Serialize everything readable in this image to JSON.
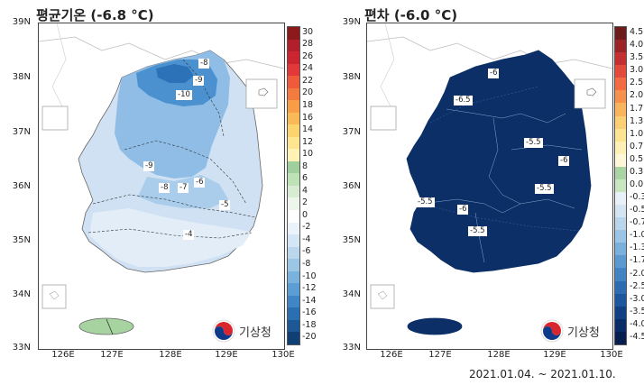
{
  "left": {
    "title": "평균기온 (-6.8 °C)",
    "lat_labels": [
      "39N",
      "38N",
      "37N",
      "36N",
      "35N",
      "34N",
      "33N"
    ],
    "lon_labels": [
      "126E",
      "127E",
      "128E",
      "129E",
      "130E"
    ],
    "colorbar_labels": [
      "30",
      "28",
      "26",
      "24",
      "22",
      "20",
      "18",
      "16",
      "14",
      "12",
      "10",
      "8",
      "6",
      "4",
      "2",
      "0",
      "-2",
      "-4",
      "-6",
      "-8",
      "-10",
      "-12",
      "-14",
      "-16",
      "-18",
      "-20"
    ],
    "colorbar_colors": [
      "#8c1a1a",
      "#b01f2a",
      "#cc2530",
      "#e2383a",
      "#ef5a3a",
      "#f47b3f",
      "#f79c47",
      "#f9b957",
      "#fbd36f",
      "#fde68f",
      "#fef2b4",
      "#9fcf9c",
      "#bde2b6",
      "#d8ecd3",
      "#eef5ea",
      "#ffffff",
      "#eaf2fa",
      "#d4e6f5",
      "#bad7ee",
      "#9cc6e6",
      "#7ab2de",
      "#5b9dd5",
      "#3f86c7",
      "#2b6fb3",
      "#1c5796",
      "#0f3f74"
    ],
    "contour_labels": [
      "-8",
      "-9",
      "-10",
      "-9",
      "-8",
      "-7",
      "-6",
      "-5",
      "-4"
    ]
  },
  "right": {
    "title": "편차 (-6.0 °C)",
    "lat_labels": [
      "39N",
      "38N",
      "37N",
      "36N",
      "35N",
      "34N",
      "33N"
    ],
    "lon_labels": [
      "126E",
      "127E",
      "128E",
      "129E",
      "130E"
    ],
    "colorbar_labels": [
      "4.5",
      "4.0",
      "3.5",
      "3.0",
      "2.5",
      "2.0",
      "1.7",
      "1.3",
      "1.0",
      "0.7",
      "0.5",
      "0.3",
      "0.0",
      "-0.3",
      "-0.5",
      "-0.7",
      "-1.0",
      "-1.3",
      "-1.7",
      "-2.0",
      "-2.5",
      "-3.0",
      "-3.5",
      "-4.0",
      "-4.5"
    ],
    "colorbar_colors": [
      "#6b1b1b",
      "#9b2226",
      "#c23032",
      "#e24a3b",
      "#f26b43",
      "#f7924e",
      "#f9b45e",
      "#fbd074",
      "#fde493",
      "#fef1b7",
      "#fff8d8",
      "#a8d5a2",
      "#c9e6c3",
      "#e8f1f8",
      "#d3e5f3",
      "#b9d6ec",
      "#9cc4e4",
      "#7cb0dc",
      "#5c99d1",
      "#4283c4",
      "#2d6cb3",
      "#1d569e",
      "#123f83",
      "#0b2c66",
      "#061f4f"
    ],
    "contour_labels": [
      "-6",
      "-6.5",
      "-5.5",
      "-6",
      "-5.5",
      "-5.5",
      "-6",
      "-5.5"
    ]
  },
  "logo": {
    "text": "기상청"
  },
  "date_range": "2021.01.04. ~ 2021.01.10."
}
